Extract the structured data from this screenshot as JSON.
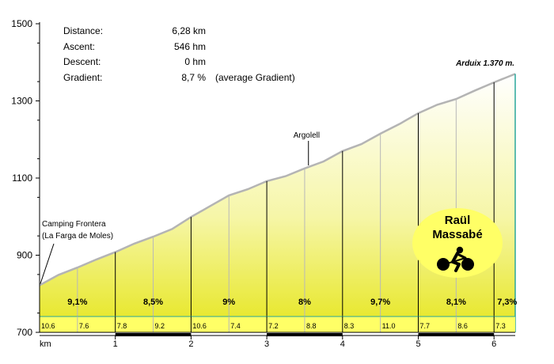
{
  "chart_data": {
    "type": "area",
    "y_ticks": [
      1500,
      1300,
      1100,
      900,
      700
    ],
    "ylim": [
      700,
      1500
    ],
    "xlim": [
      0,
      6.28
    ],
    "x_unit_label": "km",
    "x_ticks": [
      "1",
      "2",
      "3",
      "4",
      "5",
      "6"
    ],
    "profile": {
      "x": [
        0,
        0.25,
        0.5,
        0.75,
        1.0,
        1.25,
        1.5,
        1.75,
        2.0,
        2.25,
        2.5,
        2.75,
        3.0,
        3.25,
        3.5,
        3.75,
        4.0,
        4.25,
        4.5,
        4.75,
        5.0,
        5.25,
        5.5,
        5.75,
        6.0,
        6.28
      ],
      "y": [
        822,
        849,
        868,
        889,
        908,
        930,
        948,
        968,
        999,
        1027,
        1055,
        1071,
        1092,
        1105,
        1125,
        1143,
        1170,
        1188,
        1215,
        1240,
        1268,
        1290,
        1305,
        1327,
        1348,
        1370
      ]
    },
    "km_markers": [
      1,
      2,
      3,
      4,
      5,
      6
    ],
    "half_km_markers": [
      0.5,
      1.5,
      2.5,
      3.5,
      4.5,
      5.5
    ],
    "segment_gradients": [
      {
        "from": 0,
        "to": 1,
        "label": "9,1%"
      },
      {
        "from": 1,
        "to": 2,
        "label": "8,5%"
      },
      {
        "from": 2,
        "to": 3,
        "label": "9%"
      },
      {
        "from": 3,
        "to": 4,
        "label": "8%"
      },
      {
        "from": 4,
        "to": 5,
        "label": "9,7%"
      },
      {
        "from": 5,
        "to": 6,
        "label": "8,1%"
      },
      {
        "from": 6,
        "to": 6.28,
        "label": "7,3%"
      }
    ],
    "half_km_gradients": [
      {
        "x": 0,
        "label": "10.6"
      },
      {
        "x": 0.5,
        "label": "7.6"
      },
      {
        "x": 1,
        "label": "7.8"
      },
      {
        "x": 1.5,
        "label": "9.2"
      },
      {
        "x": 2,
        "label": "10.6"
      },
      {
        "x": 2.5,
        "label": "7.4"
      },
      {
        "x": 3,
        "label": "7.2"
      },
      {
        "x": 3.5,
        "label": "8.8"
      },
      {
        "x": 4,
        "label": "8.3"
      },
      {
        "x": 4.5,
        "label": "11.0"
      },
      {
        "x": 5,
        "label": "7.7"
      },
      {
        "x": 5.5,
        "label": "8.6"
      },
      {
        "x": 6,
        "label": "7.3"
      }
    ],
    "annotations": [
      {
        "text": "Camping Frontera",
        "x": 0,
        "y": 822
      },
      {
        "text": "(La Farga de Moles)",
        "x": 0,
        "y": 822
      },
      {
        "text": "Argolell",
        "x": 3.55,
        "y": 1128
      },
      {
        "text": "Arduix  1.370 m.",
        "x": 6.28,
        "y": 1370
      }
    ],
    "colors": {
      "fill_top": "#ffffff",
      "fill_bottom": "#e8e824",
      "profile_line": "#b4b4b4",
      "band": "#ffff66"
    }
  },
  "stats": [
    {
      "label": "Distance:",
      "value": "6,28 km",
      "note": ""
    },
    {
      "label": "Ascent:",
      "value": "546 hm",
      "note": ""
    },
    {
      "label": "Descent:",
      "value": "0 hm",
      "note": ""
    },
    {
      "label": "Gradient:",
      "value": "8,7 %",
      "note": "(average Gradient)"
    }
  ],
  "credit": {
    "line1": "Raül",
    "line2": "Massabé",
    "icon": "cyclist-icon"
  }
}
